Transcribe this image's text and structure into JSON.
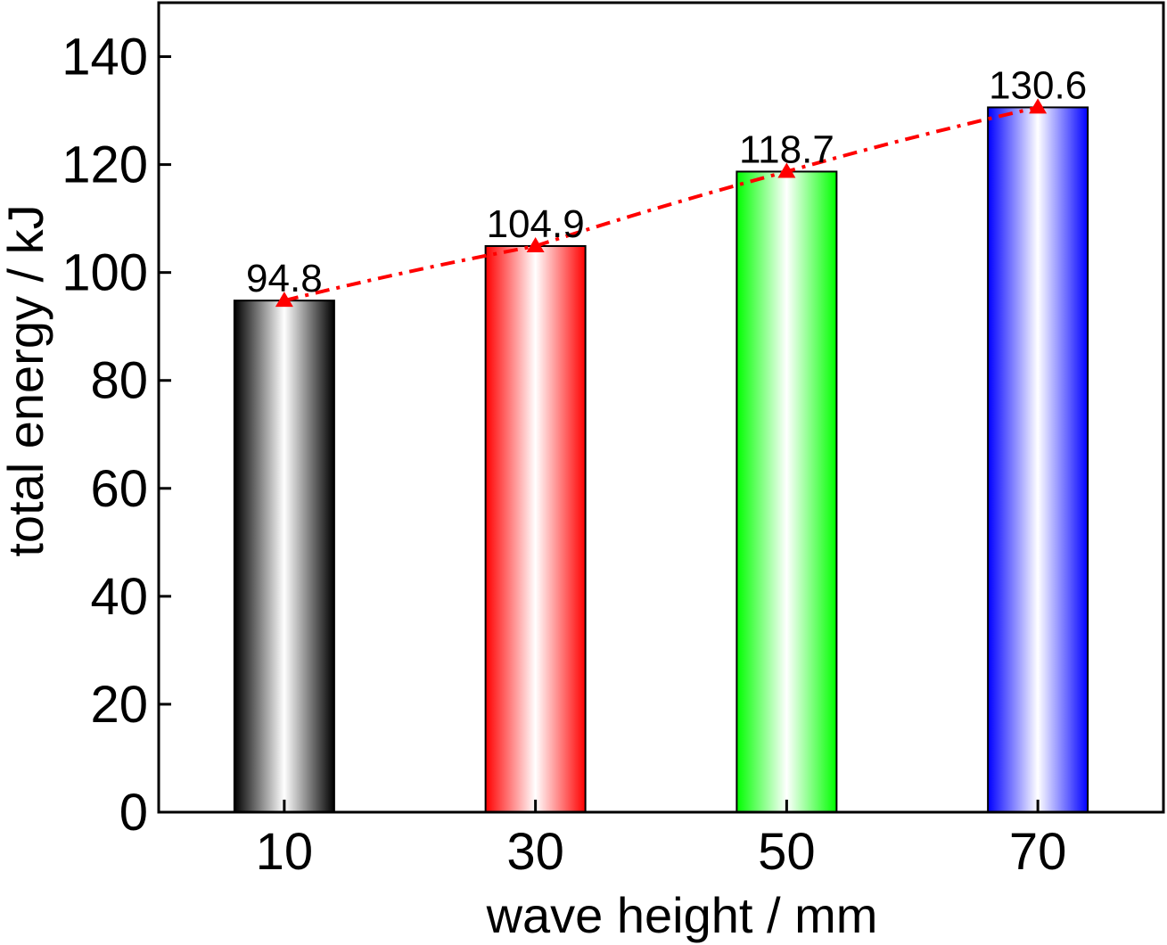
{
  "chart_data": {
    "type": "bar",
    "categories": [
      "10",
      "30",
      "50",
      "70"
    ],
    "values": [
      94.8,
      104.9,
      118.7,
      130.6
    ],
    "data_labels": [
      "94.8",
      "104.9",
      "118.7",
      "130.6"
    ],
    "bar_colors": [
      "#000000",
      "#ff0000",
      "#00ff00",
      "#0000ff"
    ],
    "overlay_line": {
      "style": "dash-dot",
      "color": "#ff0000",
      "marker": "triangle-up",
      "values": [
        94.8,
        104.9,
        118.7,
        130.6
      ]
    },
    "title": "",
    "xlabel": "wave height / mm",
    "ylabel": "total energy / kJ",
    "xlim": [
      0,
      80
    ],
    "x_positions": [
      10,
      30,
      50,
      70
    ],
    "ylim": [
      0,
      150
    ],
    "yticks": [
      0,
      20,
      40,
      60,
      80,
      100,
      120,
      140
    ],
    "ytick_labels": [
      "0",
      "20",
      "40",
      "60",
      "80",
      "100",
      "120",
      "140"
    ],
    "grid": false,
    "legend": "none"
  }
}
